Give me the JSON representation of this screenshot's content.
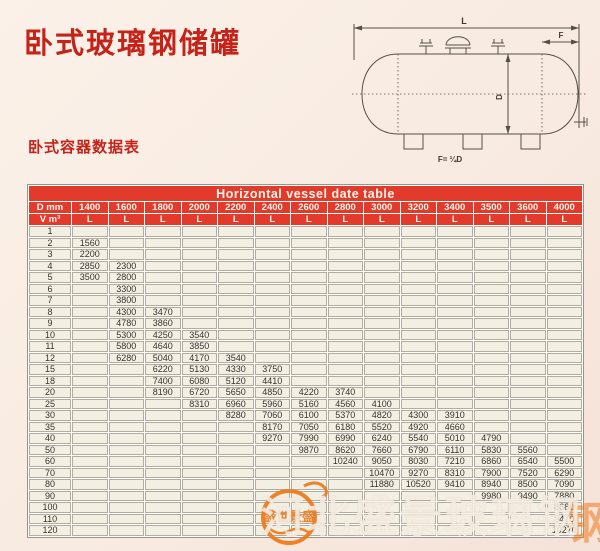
{
  "page": {
    "title": "卧式玻璃钢储罐",
    "subtitle": "卧式容器数据表"
  },
  "diagram": {
    "length_label": "L",
    "diameter_label": "D",
    "head_label": "F",
    "formula": "F= ¼D"
  },
  "table": {
    "title": "Horizontal vessel date table",
    "corner_top": "D mm",
    "corner_bottom": "V m³",
    "length_label": "L",
    "diameters": [
      "1400",
      "1600",
      "1800",
      "2000",
      "2200",
      "2400",
      "2600",
      "2800",
      "3000",
      "3200",
      "3400",
      "3500",
      "3600",
      "4000"
    ],
    "rows": [
      {
        "v": "1",
        "cells": [
          "",
          "",
          "",
          "",
          "",
          "",
          "",
          "",
          "",
          "",
          "",
          "",
          "",
          ""
        ]
      },
      {
        "v": "2",
        "cells": [
          "1560",
          "",
          "",
          "",
          "",
          "",
          "",
          "",
          "",
          "",
          "",
          "",
          "",
          ""
        ]
      },
      {
        "v": "3",
        "cells": [
          "2200",
          "",
          "",
          "",
          "",
          "",
          "",
          "",
          "",
          "",
          "",
          "",
          "",
          ""
        ]
      },
      {
        "v": "4",
        "cells": [
          "2850",
          "2300",
          "",
          "",
          "",
          "",
          "",
          "",
          "",
          "",
          "",
          "",
          "",
          ""
        ]
      },
      {
        "v": "5",
        "cells": [
          "3500",
          "2800",
          "",
          "",
          "",
          "",
          "",
          "",
          "",
          "",
          "",
          "",
          "",
          ""
        ]
      },
      {
        "v": "6",
        "cells": [
          "",
          "3300",
          "",
          "",
          "",
          "",
          "",
          "",
          "",
          "",
          "",
          "",
          "",
          ""
        ]
      },
      {
        "v": "7",
        "cells": [
          "",
          "3800",
          "",
          "",
          "",
          "",
          "",
          "",
          "",
          "",
          "",
          "",
          "",
          ""
        ]
      },
      {
        "v": "8",
        "cells": [
          "",
          "4300",
          "3470",
          "",
          "",
          "",
          "",
          "",
          "",
          "",
          "",
          "",
          "",
          ""
        ]
      },
      {
        "v": "9",
        "cells": [
          "",
          "4780",
          "3860",
          "",
          "",
          "",
          "",
          "",
          "",
          "",
          "",
          "",
          "",
          ""
        ]
      },
      {
        "v": "10",
        "cells": [
          "",
          "5300",
          "4250",
          "3540",
          "",
          "",
          "",
          "",
          "",
          "",
          "",
          "",
          "",
          ""
        ]
      },
      {
        "v": "11",
        "cells": [
          "",
          "5800",
          "4640",
          "3850",
          "",
          "",
          "",
          "",
          "",
          "",
          "",
          "",
          "",
          ""
        ]
      },
      {
        "v": "12",
        "cells": [
          "",
          "6280",
          "5040",
          "4170",
          "3540",
          "",
          "",
          "",
          "",
          "",
          "",
          "",
          "",
          ""
        ]
      },
      {
        "v": "15",
        "cells": [
          "",
          "",
          "6220",
          "5130",
          "4330",
          "3750",
          "",
          "",
          "",
          "",
          "",
          "",
          "",
          ""
        ]
      },
      {
        "v": "18",
        "cells": [
          "",
          "",
          "7400",
          "6080",
          "5120",
          "4410",
          "",
          "",
          "",
          "",
          "",
          "",
          "",
          ""
        ]
      },
      {
        "v": "20",
        "cells": [
          "",
          "",
          "8190",
          "6720",
          "5650",
          "4850",
          "4220",
          "3740",
          "",
          "",
          "",
          "",
          "",
          ""
        ]
      },
      {
        "v": "25",
        "cells": [
          "",
          "",
          "",
          "8310",
          "6960",
          "5960",
          "5160",
          "4560",
          "4100",
          "",
          "",
          "",
          "",
          ""
        ]
      },
      {
        "v": "30",
        "cells": [
          "",
          "",
          "",
          "",
          "8280",
          "7060",
          "6100",
          "5370",
          "4820",
          "4300",
          "3910",
          "",
          "",
          ""
        ]
      },
      {
        "v": "35",
        "cells": [
          "",
          "",
          "",
          "",
          "",
          "8170",
          "7050",
          "6180",
          "5520",
          "4920",
          "4660",
          "",
          "",
          ""
        ]
      },
      {
        "v": "40",
        "cells": [
          "",
          "",
          "",
          "",
          "",
          "9270",
          "7990",
          "6990",
          "6240",
          "5540",
          "5010",
          "4790",
          "",
          ""
        ]
      },
      {
        "v": "50",
        "cells": [
          "",
          "",
          "",
          "",
          "",
          "",
          "9870",
          "8620",
          "7660",
          "6790",
          "6110",
          "5830",
          "5560",
          ""
        ]
      },
      {
        "v": "60",
        "cells": [
          "",
          "",
          "",
          "",
          "",
          "",
          "",
          "10240",
          "9050",
          "8030",
          "7210",
          "6860",
          "6540",
          "5500"
        ]
      },
      {
        "v": "70",
        "cells": [
          "",
          "",
          "",
          "",
          "",
          "",
          "",
          "",
          "10470",
          "9270",
          "8310",
          "7900",
          "7520",
          "6290"
        ]
      },
      {
        "v": "80",
        "cells": [
          "",
          "",
          "",
          "",
          "",
          "",
          "",
          "",
          "11880",
          "10520",
          "9410",
          "8940",
          "8500",
          "7090"
        ]
      },
      {
        "v": "90",
        "cells": [
          "",
          "",
          "",
          "",
          "",
          "",
          "",
          "",
          "",
          "",
          "",
          "9980",
          "9490",
          "7880"
        ]
      },
      {
        "v": "100",
        "cells": [
          "",
          "",
          "",
          "",
          "",
          "",
          "",
          "",
          "",
          "",
          "",
          "",
          "",
          "8680"
        ]
      },
      {
        "v": "110",
        "cells": [
          "",
          "",
          "",
          "",
          "",
          "",
          "",
          "",
          "",
          "",
          "",
          "",
          "",
          "9470"
        ]
      },
      {
        "v": "120",
        "cells": [
          "",
          "",
          "",
          "",
          "",
          "",
          "",
          "",
          "",
          "",
          "",
          "",
          "",
          "10270"
        ]
      }
    ]
  },
  "watermark": {
    "logo_text": "盛世景盛",
    "text": "河北盛景玻璃钢",
    "text_edge": "钢"
  },
  "colors": {
    "accent_red": "#e23b2b",
    "title_red": "#c5231a",
    "cell_bg": "#f4efe3",
    "watermark_orange": "#ee7a1c",
    "page_bg": "#f8ebe1"
  }
}
